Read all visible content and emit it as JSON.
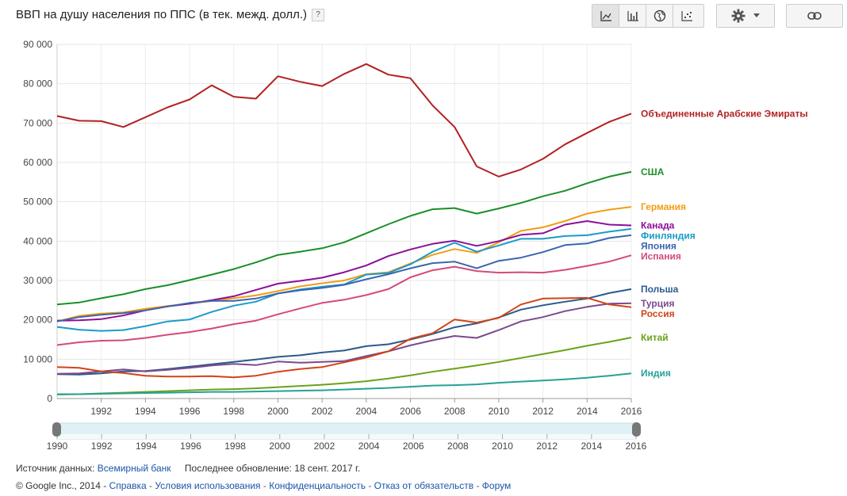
{
  "title": "ВВП на душу населения по ППС (в тек. межд. долл.)",
  "help_label": "?",
  "toolbar": {
    "chart_types": [
      {
        "name": "line-chart-button",
        "icon": "line-chart-icon"
      },
      {
        "name": "bar-chart-button",
        "icon": "bar-chart-icon"
      },
      {
        "name": "map-chart-button",
        "icon": "globe-icon"
      },
      {
        "name": "scatter-chart-button",
        "icon": "scatter-icon"
      }
    ],
    "settings_icon": "gear-icon",
    "link_icon": "link-icon"
  },
  "footer": {
    "source_label": "Источник данных:",
    "source_link": "Всемирный банк",
    "updated": "Последнее обновление: 18 сент. 2017 г.",
    "copyright": "© Google Inc., 2014 -",
    "links": [
      "Справка",
      "Условия использования",
      "Конфиденциальность",
      "Отказ от обязательств",
      "Форум"
    ]
  },
  "slider": {
    "range": [
      1990,
      2016
    ],
    "tick_labels": [
      "1990",
      "1992",
      "1994",
      "1996",
      "1998",
      "2000",
      "2002",
      "2004",
      "2006",
      "2008",
      "2010",
      "2012",
      "2014",
      "2016"
    ]
  },
  "chart_data": {
    "type": "line",
    "title": "ВВП на душу населения по ППС (в тек. межд. долл.)",
    "xlabel": "",
    "ylabel": "",
    "x": [
      1990,
      1991,
      1992,
      1993,
      1994,
      1995,
      1996,
      1997,
      1998,
      1999,
      2000,
      2001,
      2002,
      2003,
      2004,
      2005,
      2006,
      2007,
      2008,
      2009,
      2010,
      2011,
      2012,
      2013,
      2014,
      2015,
      2016
    ],
    "xlim": [
      1990,
      2016
    ],
    "ylim": [
      0,
      90000
    ],
    "x_tick_labels": [
      "1992",
      "1994",
      "1996",
      "1998",
      "2000",
      "2002",
      "2004",
      "2006",
      "2008",
      "2010",
      "2012",
      "2014",
      "2016"
    ],
    "y_tick_labels": [
      "0",
      "10 000",
      "20 000",
      "30 000",
      "40 000",
      "50 000",
      "60 000",
      "70 000",
      "80 000",
      "90 000"
    ],
    "grid": true,
    "legend": "right, labels at line ends",
    "series": [
      {
        "name": "Объединенные Арабские Эмираты",
        "color": "#b22222",
        "values": [
          71800,
          70600,
          70500,
          69000,
          71500,
          74000,
          76000,
          79600,
          76700,
          76200,
          81900,
          80500,
          79400,
          82500,
          85000,
          82300,
          81400,
          74500,
          69000,
          59000,
          56400,
          58200,
          60900,
          64600,
          67500,
          70300,
          72400
        ]
      },
      {
        "name": "США",
        "color": "#1a8f28",
        "values": [
          23900,
          24400,
          25500,
          26500,
          27800,
          28800,
          30100,
          31500,
          32900,
          34600,
          36500,
          37300,
          38200,
          39700,
          42000,
          44300,
          46400,
          48100,
          48400,
          47000,
          48300,
          49700,
          51400,
          52800,
          54700,
          56400,
          57600
        ]
      },
      {
        "name": "Германия",
        "color": "#f39c12",
        "values": [
          19600,
          21000,
          21600,
          21900,
          22800,
          23500,
          24100,
          24800,
          25500,
          26200,
          27300,
          28500,
          29300,
          30000,
          31600,
          32100,
          34300,
          36500,
          38000,
          37000,
          39700,
          42600,
          43500,
          45100,
          47000,
          48000,
          48700
        ]
      },
      {
        "name": "Канада",
        "color": "#8b0f99",
        "values": [
          19800,
          19900,
          20200,
          21100,
          22400,
          23400,
          24100,
          25000,
          26000,
          27600,
          29200,
          29900,
          30700,
          32100,
          33800,
          36200,
          37900,
          39300,
          40100,
          38800,
          40000,
          41600,
          42000,
          44200,
          45100,
          44200,
          44000
        ]
      },
      {
        "name": "Финляндия",
        "color": "#1b9bc9",
        "values": [
          18200,
          17500,
          17200,
          17400,
          18400,
          19600,
          20100,
          22000,
          23600,
          24600,
          26700,
          27700,
          28400,
          29000,
          31500,
          31900,
          34100,
          37300,
          39600,
          37300,
          38900,
          40600,
          40600,
          41300,
          41500,
          42400,
          43100
        ]
      },
      {
        "name": "Япония",
        "color": "#3a66b0",
        "values": [
          19600,
          20700,
          21300,
          21700,
          22400,
          23400,
          24300,
          24800,
          24800,
          25400,
          26700,
          27500,
          28100,
          28900,
          30300,
          31600,
          33100,
          34400,
          34800,
          33100,
          35000,
          35800,
          37200,
          39000,
          39400,
          40800,
          41500
        ]
      },
      {
        "name": "Испания",
        "color": "#d5497b",
        "values": [
          13600,
          14300,
          14700,
          14800,
          15400,
          16200,
          16900,
          17800,
          18900,
          19800,
          21400,
          22900,
          24300,
          25100,
          26300,
          27800,
          30800,
          32600,
          33500,
          32400,
          32000,
          32100,
          32000,
          32700,
          33700,
          34800,
          36400
        ]
      },
      {
        "name": "Польша",
        "color": "#2a5a8c",
        "values": [
          6200,
          6100,
          6400,
          6900,
          7000,
          7500,
          8100,
          8700,
          9300,
          9900,
          10600,
          11000,
          11700,
          12200,
          13300,
          13800,
          15000,
          16400,
          18100,
          19100,
          20600,
          22600,
          23700,
          24600,
          25400,
          26800,
          27800
        ]
      },
      {
        "name": "Турция",
        "color": "#7b4a8e",
        "values": [
          6300,
          6400,
          6900,
          7400,
          6900,
          7300,
          7800,
          8400,
          8800,
          8500,
          9400,
          9100,
          9300,
          9500,
          10800,
          12000,
          13500,
          14800,
          15900,
          15400,
          17400,
          19600,
          20700,
          22200,
          23300,
          24100,
          24200
        ]
      },
      {
        "name": "Россия",
        "color": "#d14418",
        "values": [
          8000,
          7800,
          6900,
          6500,
          5800,
          5600,
          5600,
          5700,
          5400,
          5800,
          6800,
          7500,
          8000,
          9200,
          10400,
          12000,
          15200,
          16600,
          20100,
          19300,
          20500,
          23900,
          25400,
          25500,
          25600,
          23900,
          23200
        ]
      },
      {
        "name": "Китай",
        "color": "#6aa218",
        "values": [
          1000,
          1100,
          1300,
          1500,
          1700,
          1900,
          2100,
          2300,
          2400,
          2600,
          2900,
          3200,
          3500,
          3900,
          4400,
          5100,
          5900,
          6800,
          7600,
          8400,
          9300,
          10300,
          11300,
          12300,
          13400,
          14400,
          15500
        ]
      },
      {
        "name": "Индия",
        "color": "#26a197",
        "values": [
          1100,
          1100,
          1200,
          1300,
          1400,
          1500,
          1600,
          1700,
          1700,
          1800,
          1900,
          2000,
          2100,
          2300,
          2500,
          2700,
          3000,
          3300,
          3400,
          3600,
          4000,
          4300,
          4600,
          4900,
          5300,
          5800,
          6400
        ]
      }
    ]
  }
}
